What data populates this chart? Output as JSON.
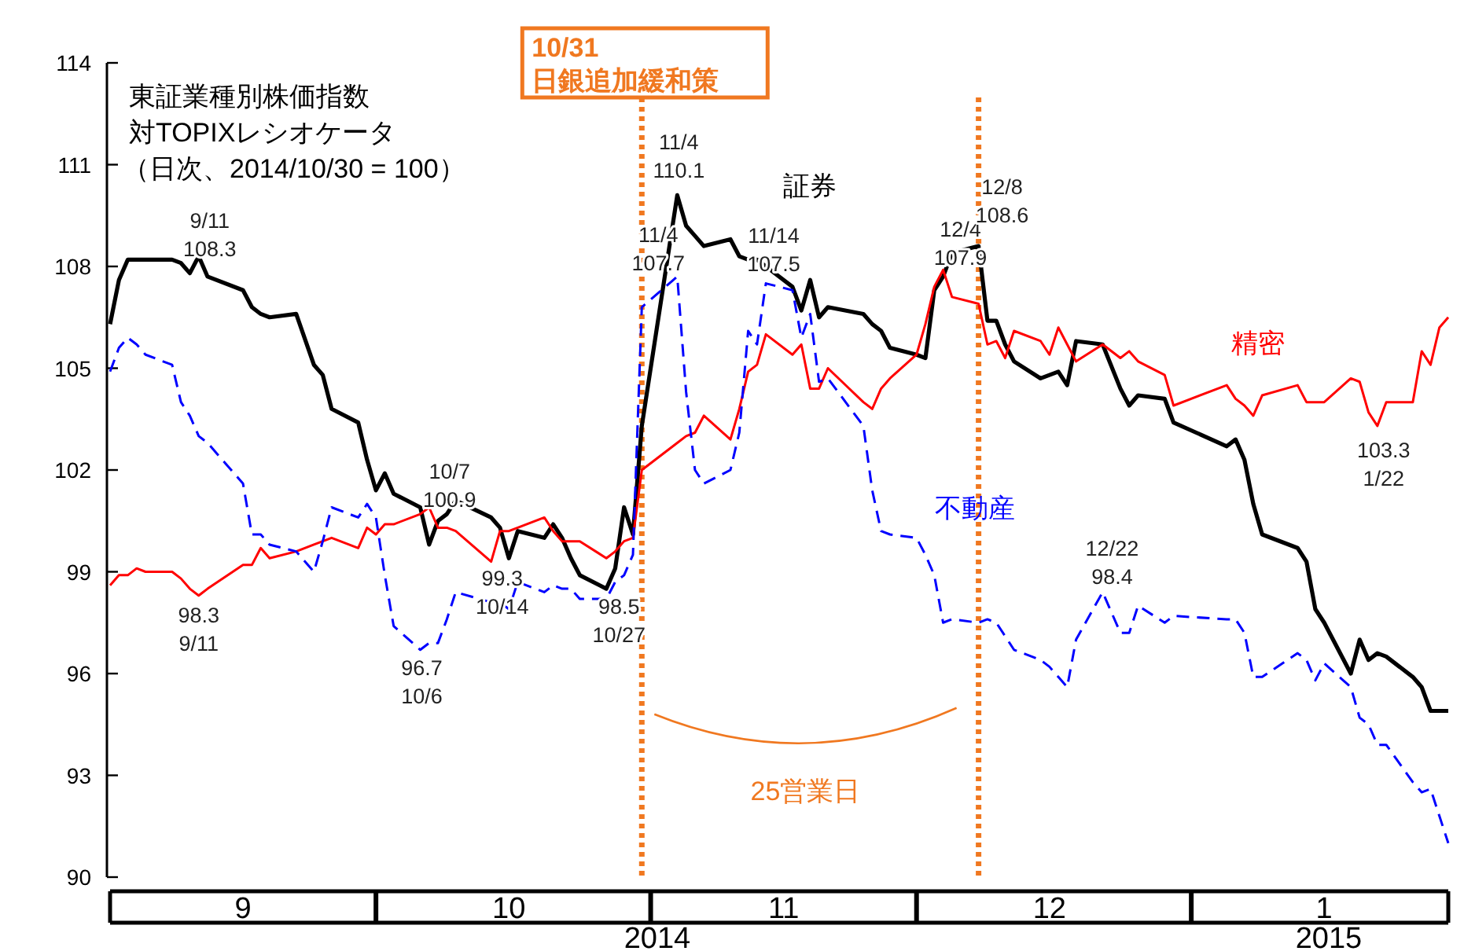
{
  "chart_data": {
    "type": "line",
    "title": "東証業種別株価指数",
    "subtitle": "対TOPIXレシオケータ",
    "x": [
      "2014-09-01",
      "2014-09-02",
      "2014-09-03",
      "2014-09-04",
      "2014-09-05",
      "2014-09-08",
      "2014-09-09",
      "2014-09-10",
      "2014-09-11",
      "2014-09-12",
      "2014-09-16",
      "2014-09-17",
      "2014-09-18",
      "2014-09-19",
      "2014-09-22",
      "2014-09-24",
      "2014-09-25",
      "2014-09-26",
      "2014-09-29",
      "2014-09-30",
      "2014-10-01",
      "2014-10-02",
      "2014-10-03",
      "2014-10-06",
      "2014-10-07",
      "2014-10-08",
      "2014-10-09",
      "2014-10-10",
      "2014-10-14",
      "2014-10-15",
      "2014-10-16",
      "2014-10-17",
      "2014-10-20",
      "2014-10-21",
      "2014-10-22",
      "2014-10-23",
      "2014-10-24",
      "2014-10-27",
      "2014-10-28",
      "2014-10-29",
      "2014-10-30",
      "2014-10-31",
      "2014-11-04",
      "2014-11-05",
      "2014-11-06",
      "2014-11-07",
      "2014-11-10",
      "2014-11-11",
      "2014-11-12",
      "2014-11-13",
      "2014-11-14",
      "2014-11-17",
      "2014-11-18",
      "2014-11-19",
      "2014-11-20",
      "2014-11-21",
      "2014-11-25",
      "2014-11-26",
      "2014-11-27",
      "2014-11-28",
      "2014-12-01",
      "2014-12-02",
      "2014-12-03",
      "2014-12-04",
      "2014-12-05",
      "2014-12-08",
      "2014-12-09",
      "2014-12-10",
      "2014-12-11",
      "2014-12-12",
      "2014-12-15",
      "2014-12-16",
      "2014-12-17",
      "2014-12-18",
      "2014-12-19",
      "2014-12-22",
      "2014-12-24",
      "2014-12-25",
      "2014-12-26",
      "2014-12-29",
      "2014-12-30",
      "2015-01-05",
      "2015-01-06",
      "2015-01-07",
      "2015-01-08",
      "2015-01-09",
      "2015-01-13",
      "2015-01-14",
      "2015-01-15",
      "2015-01-16",
      "2015-01-19",
      "2015-01-20",
      "2015-01-21",
      "2015-01-22",
      "2015-01-23",
      "2015-01-26",
      "2015-01-27",
      "2015-01-28",
      "2015-01-29",
      "2015-01-30"
    ],
    "series": [
      {
        "name": "証券",
        "color": "#000000",
        "line_style": "solid",
        "values": [
          106.3,
          107.6,
          108.2,
          108.2,
          108.2,
          108.2,
          108.1,
          107.8,
          108.3,
          107.7,
          107.3,
          106.8,
          106.6,
          106.5,
          106.6,
          105.1,
          104.8,
          103.8,
          103.4,
          102.3,
          101.4,
          101.9,
          101.3,
          100.9,
          99.8,
          100.5,
          100.7,
          101.1,
          100.6,
          100.3,
          99.4,
          100.2,
          100.0,
          100.4,
          100.0,
          99.4,
          98.9,
          98.5,
          99.1,
          100.9,
          100.1,
          103.3,
          110.1,
          109.2,
          108.9,
          108.6,
          108.8,
          108.3,
          108.2,
          108.2,
          108.0,
          107.4,
          106.7,
          107.6,
          106.5,
          106.8,
          106.6,
          106.3,
          106.1,
          105.6,
          105.4,
          105.3,
          107.3,
          107.7,
          108.4,
          108.6,
          106.4,
          106.4,
          105.7,
          105.2,
          104.7,
          104.8,
          104.9,
          104.5,
          105.8,
          105.7,
          104.4,
          103.9,
          104.2,
          104.1,
          103.4,
          102.7,
          102.9,
          102.3,
          101.0,
          100.1,
          99.7,
          99.3,
          97.9,
          97.5,
          96.0,
          97.0,
          96.4,
          96.6,
          96.5,
          95.9,
          95.6,
          94.9,
          94.9,
          94.9
        ]
      },
      {
        "name": "精密",
        "color": "#ff0000",
        "line_style": "solid",
        "values": [
          98.6,
          98.9,
          98.9,
          99.1,
          99.0,
          99.0,
          98.8,
          98.5,
          98.3,
          98.5,
          99.2,
          99.2,
          99.7,
          99.4,
          99.6,
          99.8,
          99.9,
          100.0,
          99.7,
          100.3,
          100.1,
          100.4,
          100.4,
          100.7,
          100.9,
          100.3,
          100.3,
          100.2,
          99.3,
          100.2,
          100.2,
          100.3,
          100.6,
          100.2,
          99.9,
          99.9,
          99.9,
          99.4,
          99.6,
          99.9,
          100.0,
          102.0,
          102.8,
          103.0,
          103.1,
          103.6,
          102.9,
          103.8,
          104.9,
          105.1,
          106.0,
          105.4,
          105.7,
          104.4,
          104.4,
          105.0,
          104.0,
          103.8,
          104.4,
          104.7,
          105.4,
          106.3,
          107.4,
          107.9,
          107.1,
          106.9,
          105.7,
          105.8,
          105.3,
          106.1,
          105.8,
          105.4,
          106.2,
          105.7,
          105.2,
          105.7,
          105.3,
          105.5,
          105.2,
          104.8,
          103.9,
          104.5,
          104.1,
          103.9,
          103.6,
          104.2,
          104.5,
          104.0,
          104.0,
          104.0,
          104.7,
          104.6,
          103.7,
          103.3,
          104.0,
          104.0,
          105.5,
          105.1,
          106.2,
          106.5
        ]
      },
      {
        "name": "不動産",
        "color": "#0000ff",
        "line_style": "dashed",
        "values": [
          104.9,
          105.6,
          105.9,
          105.7,
          105.4,
          105.1,
          104.0,
          103.6,
          103.0,
          102.8,
          101.6,
          100.1,
          100.1,
          99.8,
          99.6,
          99.0,
          99.9,
          100.9,
          100.6,
          101.0,
          100.6,
          98.9,
          97.4,
          96.7,
          96.9,
          96.9,
          97.6,
          98.4,
          98.1,
          98.1,
          97.9,
          98.7,
          98.4,
          98.6,
          98.5,
          98.5,
          98.2,
          98.2,
          98.7,
          98.9,
          99.5,
          106.8,
          107.7,
          104.3,
          102.0,
          101.6,
          102.0,
          103.1,
          106.1,
          105.7,
          107.5,
          107.3,
          105.9,
          106.6,
          104.6,
          104.7,
          103.3,
          101.4,
          100.2,
          100.1,
          100.0,
          99.5,
          98.9,
          97.5,
          97.6,
          97.5,
          97.6,
          97.5,
          97.1,
          96.7,
          96.4,
          96.2,
          95.9,
          95.6,
          97.0,
          98.4,
          97.2,
          97.2,
          98.0,
          97.5,
          97.7,
          97.6,
          97.6,
          97.2,
          95.9,
          95.9,
          96.6,
          96.4,
          95.8,
          96.3,
          95.6,
          94.7,
          94.5,
          93.9,
          93.9,
          92.8,
          92.5,
          92.6,
          91.8,
          91.0
        ]
      }
    ],
    "xlim": [
      "2014-09-01",
      "2015-01-30"
    ],
    "xticks": [
      {
        "value": "2014-09-16",
        "label": "9"
      },
      {
        "value": "2014-10-16",
        "label": "10"
      },
      {
        "value": "2014-11-16",
        "label": "11"
      },
      {
        "value": "2014-12-16",
        "label": "12"
      },
      {
        "value": "2015-01-16",
        "label": "1"
      }
    ],
    "ylim": [
      90,
      114
    ],
    "yticks": [
      90,
      93,
      96,
      99,
      102,
      105,
      108,
      111,
      114
    ],
    "ref_lines": [
      {
        "axis": "x",
        "value": "2014-10-31",
        "label": "10/31\n日銀追加緩和策",
        "color": "#f07820",
        "line_style": "dotted"
      },
      {
        "axis": "x",
        "value": "2014-12-08",
        "color": "#f07820",
        "line_style": "dotted"
      }
    ],
    "annotations": [
      "（日次、2014/10/30 = 100）",
      {
        "text": "9/11\n108.3",
        "x": "2014-09-11",
        "y": 108.3
      },
      {
        "text": "98.3\n9/11",
        "x": "2014-09-11",
        "y": 98.3
      },
      {
        "text": "10/7\n100.9",
        "x": "2014-10-07",
        "y": 100.9
      },
      {
        "text": "96.7\n10/6",
        "x": "2014-10-06",
        "y": 96.7
      },
      {
        "text": "99.3\n10/14",
        "x": "2014-10-14",
        "y": 99.3
      },
      {
        "text": "98.5\n10/27",
        "x": "2014-10-27",
        "y": 98.5
      },
      {
        "text": "11/4\n110.1",
        "x": "2014-11-04",
        "y": 110.1
      },
      {
        "text": "11/4\n107.7",
        "x": "2014-11-04",
        "y": 107.7
      },
      {
        "text": "11/14\n107.5",
        "x": "2014-11-14",
        "y": 107.5
      },
      {
        "text": "12/4\n107.9",
        "x": "2014-12-04",
        "y": 107.9
      },
      {
        "text": "12/8\n108.6",
        "x": "2014-12-08",
        "y": 108.6
      },
      {
        "text": "12/22\n98.4",
        "x": "2014-12-22",
        "y": 98.4
      },
      {
        "text": "103.3\n1/22",
        "x": "2015-01-22",
        "y": 103.3
      },
      "25営業日",
      "2014",
      "2015"
    ]
  }
}
